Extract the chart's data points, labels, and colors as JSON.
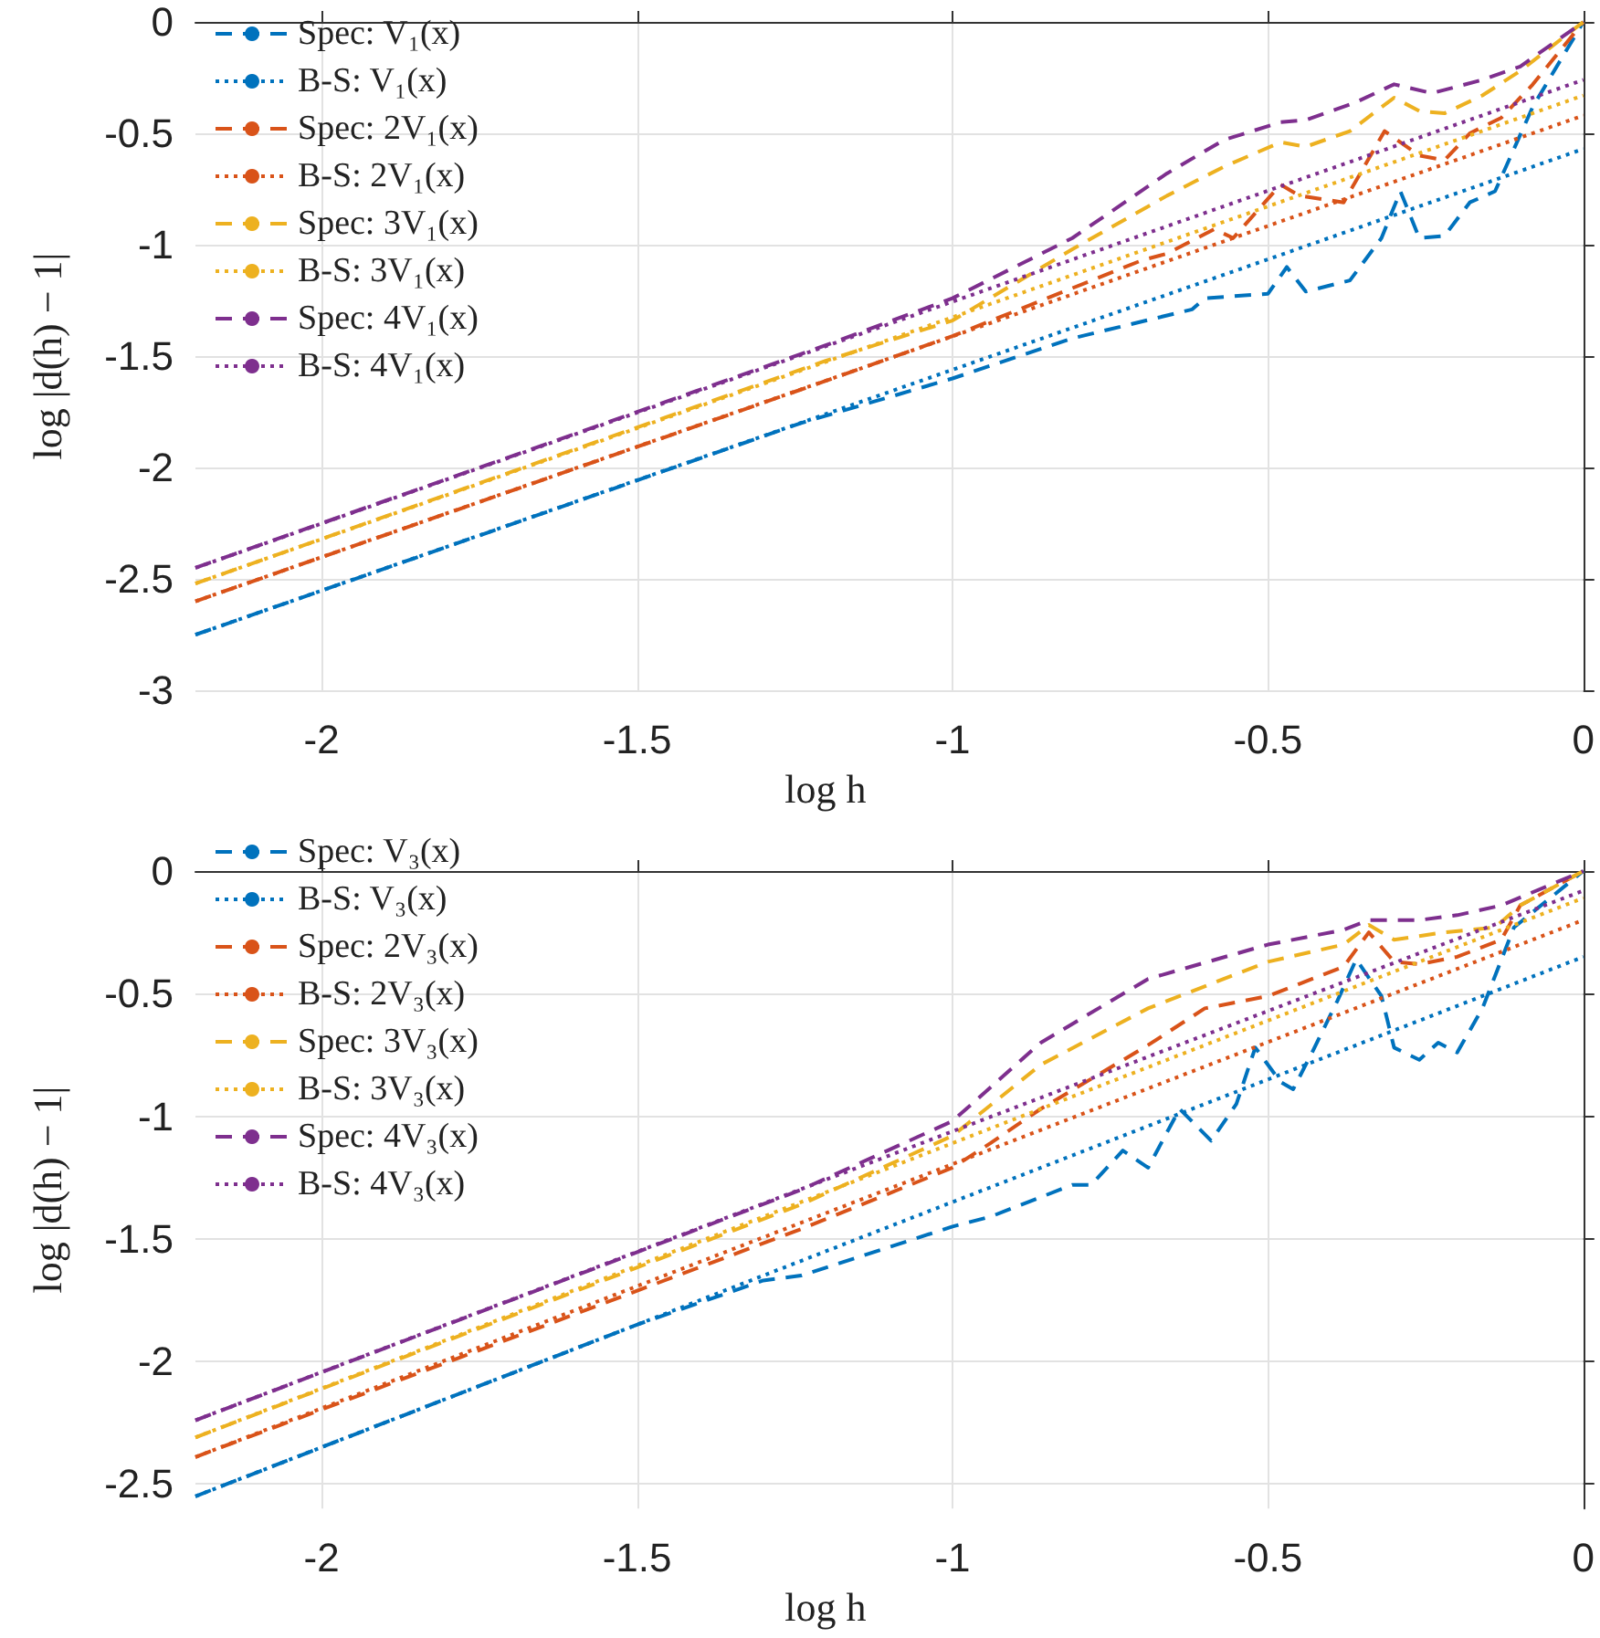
{
  "chart_data": [
    {
      "type": "line",
      "xlabel": "log h",
      "ylabel": "log |d(h) − 1|",
      "xlim": [
        -2.2,
        0
      ],
      "xticks": [
        -2,
        -1.5,
        -1,
        -0.5,
        0
      ],
      "ylim": [
        -3,
        0
      ],
      "yticks": [
        -3,
        -2.5,
        -2,
        -1.5,
        -1,
        -0.5,
        0
      ],
      "grid": true,
      "legend": "top left",
      "series": [
        {
          "name": "Spec: V₁(x)",
          "color": "#0072bd",
          "line_style": "dashed",
          "x": [
            -2.2,
            -1.24,
            -1.0,
            -0.81,
            -0.62,
            -0.6,
            -0.5,
            -0.47,
            -0.44,
            -0.37,
            -0.32,
            -0.29,
            -0.26,
            -0.22,
            -0.18,
            -0.14,
            -0.08,
            0
          ],
          "values": [
            -2.75,
            -1.8,
            -1.6,
            -1.42,
            -1.29,
            -1.24,
            -1.22,
            -1.1,
            -1.21,
            -1.16,
            -0.97,
            -0.76,
            -0.97,
            -0.96,
            -0.81,
            -0.76,
            -0.38,
            0
          ]
        },
        {
          "name": "B-S: V₁(x)",
          "color": "#0072bd",
          "line_style": "dotted",
          "x": [
            -2.2,
            0
          ],
          "values": [
            -2.75,
            -0.57
          ]
        },
        {
          "name": "Spec: 2V₁(x)",
          "color": "#d95319",
          "line_style": "dashed",
          "x": [
            -2.2,
            -1.2,
            -1.0,
            -0.7,
            -0.66,
            -0.585,
            -0.555,
            -0.48,
            -0.45,
            -0.38,
            -0.315,
            -0.26,
            -0.22,
            -0.18,
            -0.13,
            -0.08,
            0
          ],
          "values": [
            -2.6,
            -1.61,
            -1.41,
            -1.07,
            -1.04,
            -0.93,
            -0.97,
            -0.73,
            -0.78,
            -0.81,
            -0.49,
            -0.6,
            -0.62,
            -0.5,
            -0.43,
            -0.28,
            0
          ]
        },
        {
          "name": "B-S: 2V₁(x)",
          "color": "#d95319",
          "line_style": "dotted",
          "x": [
            -2.2,
            0
          ],
          "values": [
            -2.6,
            -0.42
          ]
        },
        {
          "name": "Spec: 3V₁(x)",
          "color": "#edb120",
          "line_style": "dashed",
          "x": [
            -2.2,
            -1.2,
            -1.0,
            -0.81,
            -0.66,
            -0.57,
            -0.48,
            -0.44,
            -0.37,
            -0.3,
            -0.26,
            -0.22,
            -0.16,
            -0.1,
            0
          ],
          "values": [
            -2.52,
            -1.52,
            -1.34,
            -1.02,
            -0.78,
            -0.65,
            -0.54,
            -0.56,
            -0.49,
            -0.34,
            -0.4,
            -0.41,
            -0.33,
            -0.22,
            0
          ]
        },
        {
          "name": "B-S: 3V₁(x)",
          "color": "#edb120",
          "line_style": "dotted",
          "x": [
            -2.2,
            0
          ],
          "values": [
            -2.52,
            -0.33
          ]
        },
        {
          "name": "Spec: 4V₁(x)",
          "color": "#7e2f8e",
          "line_style": "dashed",
          "x": [
            -2.2,
            -1.2,
            -1.0,
            -0.81,
            -0.66,
            -0.57,
            -0.48,
            -0.44,
            -0.36,
            -0.3,
            -0.24,
            -0.16,
            -0.1,
            0
          ],
          "values": [
            -2.45,
            -1.45,
            -1.24,
            -0.97,
            -0.68,
            -0.53,
            -0.45,
            -0.44,
            -0.36,
            -0.28,
            -0.32,
            -0.26,
            -0.2,
            0
          ]
        },
        {
          "name": "B-S: 4V₁(x)",
          "color": "#7e2f8e",
          "line_style": "dotted",
          "x": [
            -2.2,
            0
          ],
          "values": [
            -2.45,
            -0.26
          ]
        }
      ]
    },
    {
      "type": "line",
      "xlabel": "log h",
      "ylabel": "log |d(h) − 1|",
      "xlim": [
        -2.2,
        0
      ],
      "xticks": [
        -2,
        -1.5,
        -1,
        -0.5,
        0
      ],
      "ylim": [
        -2.6,
        0
      ],
      "yticks": [
        -2.5,
        -2,
        -1.5,
        -1,
        -0.5,
        0
      ],
      "grid": true,
      "legend": "top left",
      "series": [
        {
          "name": "Spec: V₃(x)",
          "color": "#0072bd",
          "line_style": "dashed",
          "x": [
            -2.2,
            -1.5,
            -1.3,
            -1.24,
            -1.0,
            -0.94,
            -0.81,
            -0.78,
            -0.73,
            -0.69,
            -0.64,
            -0.59,
            -0.55,
            -0.52,
            -0.48,
            -0.46,
            -0.43,
            -0.39,
            -0.36,
            -0.32,
            -0.3,
            -0.26,
            -0.23,
            -0.2,
            -0.16,
            -0.11,
            0
          ],
          "values": [
            -2.55,
            -1.85,
            -1.67,
            -1.65,
            -1.45,
            -1.41,
            -1.28,
            -1.28,
            -1.14,
            -1.21,
            -0.97,
            -1.1,
            -0.95,
            -0.72,
            -0.86,
            -0.89,
            -0.74,
            -0.53,
            -0.36,
            -0.51,
            -0.72,
            -0.77,
            -0.7,
            -0.74,
            -0.56,
            -0.23,
            0
          ]
        },
        {
          "name": "B-S: V₃(x)",
          "color": "#0072bd",
          "line_style": "dotted",
          "x": [
            -2.2,
            0
          ],
          "values": [
            -2.55,
            -0.35
          ]
        },
        {
          "name": "Spec: 2V₃(x)",
          "color": "#d95319",
          "line_style": "dashed",
          "x": [
            -2.2,
            -1.24,
            -1.0,
            -0.94,
            -0.86,
            -0.69,
            -0.6,
            -0.5,
            -0.45,
            -0.38,
            -0.34,
            -0.3,
            -0.26,
            -0.2,
            -0.13,
            -0.1,
            0
          ],
          "values": [
            -2.39,
            -1.46,
            -1.21,
            -1.11,
            -0.97,
            -0.71,
            -0.56,
            -0.51,
            -0.46,
            -0.39,
            -0.25,
            -0.37,
            -0.38,
            -0.35,
            -0.28,
            -0.14,
            0
          ]
        },
        {
          "name": "B-S: 2V₃(x)",
          "color": "#d95319",
          "line_style": "dotted",
          "x": [
            -2.2,
            0
          ],
          "values": [
            -2.39,
            -0.2
          ]
        },
        {
          "name": "Spec: 3V₃(x)",
          "color": "#edb120",
          "line_style": "dashed",
          "x": [
            -2.2,
            -1.24,
            -1.0,
            -0.86,
            -0.69,
            -0.5,
            -0.38,
            -0.34,
            -0.3,
            -0.22,
            -0.14,
            -0.1,
            0
          ],
          "values": [
            -2.31,
            -1.36,
            -1.08,
            -0.79,
            -0.56,
            -0.37,
            -0.3,
            -0.22,
            -0.28,
            -0.25,
            -0.23,
            -0.14,
            0
          ]
        },
        {
          "name": "B-S: 3V₃(x)",
          "color": "#edb120",
          "line_style": "dotted",
          "x": [
            -2.2,
            0
          ],
          "values": [
            -2.31,
            -0.11
          ]
        },
        {
          "name": "Spec: 4V₃(x)",
          "color": "#7e2f8e",
          "line_style": "dashed",
          "x": [
            -2.2,
            -1.24,
            -1.0,
            -0.86,
            -0.69,
            -0.5,
            -0.38,
            -0.34,
            -0.26,
            -0.2,
            -0.13,
            0
          ],
          "values": [
            -2.24,
            -1.3,
            -1.02,
            -0.7,
            -0.44,
            -0.3,
            -0.24,
            -0.2,
            -0.2,
            -0.18,
            -0.14,
            0
          ]
        },
        {
          "name": "B-S: 4V₃(x)",
          "color": "#7e2f8e",
          "line_style": "dotted",
          "x": [
            -2.2,
            0
          ],
          "values": [
            -2.24,
            -0.08
          ]
        }
      ]
    }
  ]
}
